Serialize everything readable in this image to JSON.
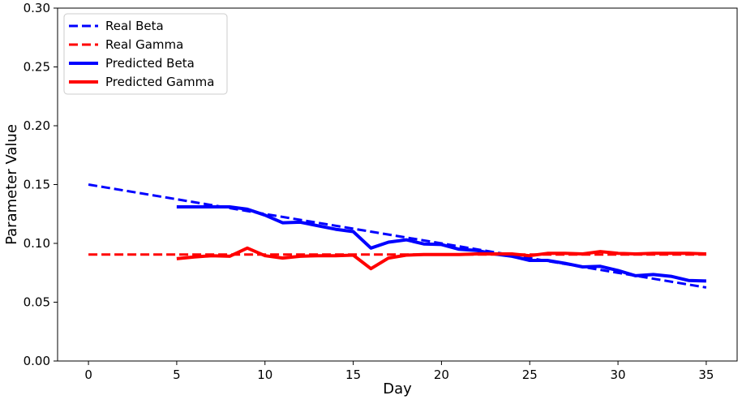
{
  "chart_data": {
    "type": "line",
    "title": "",
    "xlabel": "Day",
    "ylabel": "Parameter Value",
    "xlim": [
      -1.75,
      36.75
    ],
    "ylim": [
      0.0,
      0.3
    ],
    "xticks": [
      0,
      5,
      10,
      15,
      20,
      25,
      30,
      35
    ],
    "yticks": [
      0.0,
      0.05,
      0.1,
      0.15,
      0.2,
      0.25,
      0.3
    ],
    "xtick_labels": [
      "0",
      "5",
      "10",
      "15",
      "20",
      "25",
      "30",
      "35"
    ],
    "ytick_labels": [
      "0.00",
      "0.05",
      "0.10",
      "0.15",
      "0.20",
      "0.25",
      "0.30"
    ],
    "grid": false,
    "legend_position": "top-left",
    "series": [
      {
        "name": "Real Beta",
        "color": "#0000ff",
        "style": "dashed",
        "x": [
          0,
          35
        ],
        "y": [
          0.15,
          0.0625
        ]
      },
      {
        "name": "Real Gamma",
        "color": "#ff0000",
        "style": "dashed",
        "x": [
          0,
          35
        ],
        "y": [
          0.0905,
          0.0905
        ]
      },
      {
        "name": "Predicted Beta",
        "color": "#0000ff",
        "style": "solid",
        "x": [
          5,
          6,
          7,
          8,
          9,
          10,
          11,
          12,
          13,
          14,
          15,
          16,
          17,
          18,
          19,
          20,
          21,
          22,
          23,
          24,
          25,
          26,
          27,
          28,
          29,
          30,
          31,
          32,
          33,
          34,
          35
        ],
        "y": [
          0.131,
          0.131,
          0.131,
          0.131,
          0.129,
          0.124,
          0.1175,
          0.118,
          0.115,
          0.112,
          0.11,
          0.096,
          0.101,
          0.103,
          0.0995,
          0.099,
          0.095,
          0.094,
          0.091,
          0.089,
          0.0855,
          0.0855,
          0.083,
          0.08,
          0.0805,
          0.077,
          0.0725,
          0.0735,
          0.072,
          0.0685,
          0.068
        ]
      },
      {
        "name": "Predicted Gamma",
        "color": "#ff0000",
        "style": "solid",
        "x": [
          5,
          6,
          7,
          8,
          9,
          10,
          11,
          12,
          13,
          14,
          15,
          16,
          17,
          18,
          19,
          20,
          21,
          22,
          23,
          24,
          25,
          26,
          27,
          28,
          29,
          30,
          31,
          32,
          33,
          34,
          35
        ],
        "y": [
          0.087,
          0.0885,
          0.0895,
          0.089,
          0.096,
          0.0895,
          0.0875,
          0.089,
          0.0895,
          0.0895,
          0.09,
          0.0785,
          0.0875,
          0.09,
          0.0905,
          0.0905,
          0.0905,
          0.091,
          0.091,
          0.091,
          0.0895,
          0.0915,
          0.0915,
          0.091,
          0.093,
          0.0915,
          0.091,
          0.0915,
          0.0915,
          0.0915,
          0.091
        ]
      }
    ]
  }
}
